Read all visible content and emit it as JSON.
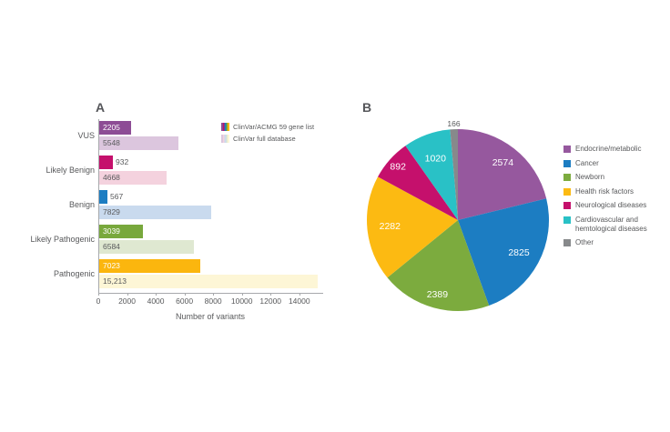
{
  "panels": {
    "a": {
      "label": "A"
    },
    "b": {
      "label": "B"
    }
  },
  "colors": {
    "text": "#58595b",
    "axis": "#a7a9ac",
    "purple": "#96589e",
    "blue": "#1c7dc2",
    "green": "#7cab3e",
    "yellow": "#fcba12",
    "magenta": "#c5106c",
    "teal": "#29c1c6",
    "gray": "#87898b"
  },
  "icons": {
    "legend_acmg_swatch": "five-color-striped-swatch",
    "legend_full_swatch": "five-color-striped-swatch-light"
  },
  "chart_data": [
    {
      "type": "bar",
      "panel": "A",
      "orientation": "horizontal",
      "title": "",
      "xlabel": "Number of variants",
      "ylabel": "",
      "xlim": [
        0,
        15600
      ],
      "xticks": [
        0,
        2000,
        4000,
        6000,
        8000,
        10000,
        12000,
        14000
      ],
      "grid": false,
      "legend_position": "top-right",
      "categories": [
        "VUS",
        "Likely Benign",
        "Benign",
        "Likely Pathogenic",
        "Pathogenic"
      ],
      "series": [
        {
          "name": "ClinVar/ACMG 59 gene list",
          "values": [
            2205,
            932,
            567,
            3039,
            7023
          ],
          "display_values": [
            "2205",
            "932",
            "567",
            "3039",
            "7023"
          ],
          "colors": [
            "#8d4c95",
            "#c5106c",
            "#1c7dc2",
            "#78a83c",
            "#fbb60e"
          ]
        },
        {
          "name": "ClinVar full database",
          "values": [
            5548,
            4668,
            7829,
            6584,
            15213
          ],
          "display_values": [
            "5548",
            "4668",
            "7829",
            "6584",
            "15,213"
          ],
          "colors": [
            "#dcc6de",
            "#f4d2de",
            "#c9daee",
            "#dfe8d1",
            "#fdf6d6"
          ]
        }
      ]
    },
    {
      "type": "pie",
      "panel": "B",
      "start_angle_deg": 0,
      "legend_position": "right",
      "slices": [
        {
          "label": "Endocrine/metabolic",
          "value": 2574,
          "color": "#96589e"
        },
        {
          "label": "Cancer",
          "value": 2825,
          "color": "#1c7dc2"
        },
        {
          "label": "Newborn",
          "value": 2389,
          "color": "#7cab3e"
        },
        {
          "label": "Health risk factors",
          "value": 2282,
          "color": "#fcba12"
        },
        {
          "label": "Neurological diseases",
          "value": 892,
          "color": "#c5106c"
        },
        {
          "label": "Cardiovascular and hemtological diseases",
          "value": 1020,
          "color": "#29c1c6"
        },
        {
          "label": "Other",
          "value": 166,
          "color": "#87898b"
        }
      ]
    }
  ]
}
